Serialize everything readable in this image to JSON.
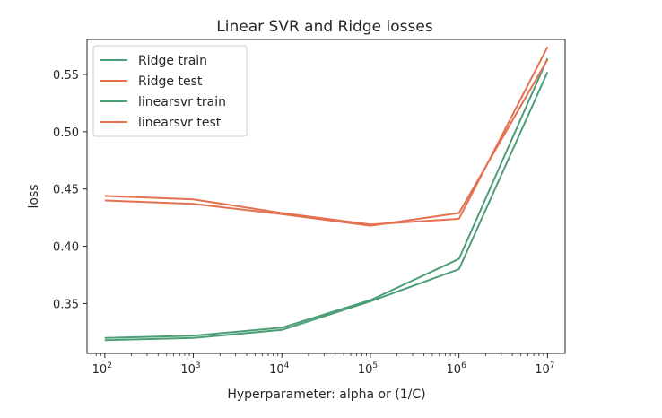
{
  "chart_data": {
    "type": "line",
    "title": "Linear SVR and Ridge losses",
    "xlabel": "Hyperparameter: alpha or (1/C)",
    "ylabel": "loss",
    "x_scale": "log",
    "x": [
      100,
      1000,
      10000,
      100000,
      1000000,
      10000000
    ],
    "x_tick_labels": [
      {
        "base": "10",
        "exp": "2"
      },
      {
        "base": "10",
        "exp": "3"
      },
      {
        "base": "10",
        "exp": "4"
      },
      {
        "base": "10",
        "exp": "5"
      },
      {
        "base": "10",
        "exp": "6"
      },
      {
        "base": "10",
        "exp": "7"
      }
    ],
    "xlim": [
      63,
      15800000
    ],
    "ylim": [
      0.3065,
      0.5805
    ],
    "y_ticks": [
      0.35,
      0.4,
      0.45,
      0.5,
      0.55
    ],
    "y_tick_labels": [
      "0.35",
      "0.40",
      "0.45",
      "0.50",
      "0.55"
    ],
    "grid": false,
    "legend_placement": "top-left",
    "series": [
      {
        "name": "Ridge train",
        "color": "#4c9e78",
        "values": [
          0.32,
          0.322,
          0.329,
          0.353,
          0.389,
          0.564
        ]
      },
      {
        "name": "Ridge test",
        "color": "#e3714f",
        "values": [
          0.444,
          0.441,
          0.429,
          0.419,
          0.424,
          0.574
        ]
      },
      {
        "name": "linearsvr train",
        "color": "#4c9e78",
        "values": [
          0.318,
          0.32,
          0.327,
          0.352,
          0.38,
          0.552
        ]
      },
      {
        "name": "linearsvr test",
        "color": "#e3714f",
        "values": [
          0.44,
          0.437,
          0.428,
          0.418,
          0.429,
          0.563
        ]
      }
    ]
  }
}
